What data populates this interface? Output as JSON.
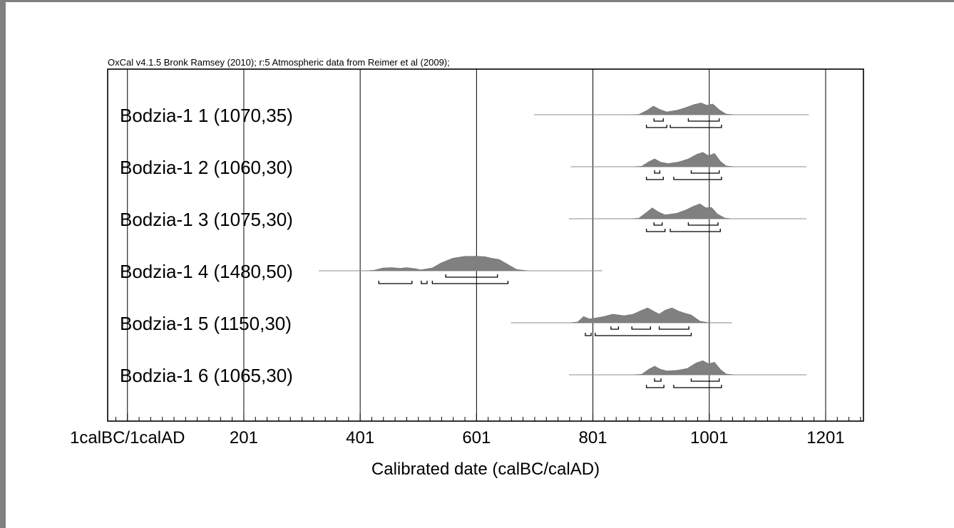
{
  "chart_data": {
    "type": "area",
    "title": "OxCal v4.1.5 Bronk Ramsey (2010); r:5 Atmospheric data from Reimer et al (2009);",
    "xlabel": "Calibrated date (calBC/calAD)",
    "xlim": [
      -33,
      1266
    ],
    "major_ticks": [
      1,
      201,
      401,
      601,
      801,
      1001,
      1201
    ],
    "tick_labels": [
      "1calBC/1calAD",
      "201",
      "401",
      "601",
      "801",
      "1001",
      "1201"
    ],
    "minor_tick_step": 20,
    "grid": true,
    "fill_color": "#808080",
    "series": [
      {
        "name": "Bodzia-1 1 (1070,35)",
        "range": [
          700,
          1172
        ],
        "curve": [
          [
            700,
            0
          ],
          [
            860,
            0
          ],
          [
            880,
            0.02
          ],
          [
            895,
            0.3
          ],
          [
            905,
            0.55
          ],
          [
            915,
            0.35
          ],
          [
            928,
            0.18
          ],
          [
            945,
            0.28
          ],
          [
            960,
            0.45
          ],
          [
            975,
            0.65
          ],
          [
            987,
            0.75
          ],
          [
            997,
            0.6
          ],
          [
            1007,
            0.68
          ],
          [
            1018,
            0.32
          ],
          [
            1030,
            0.04
          ],
          [
            1045,
            0
          ],
          [
            1172,
            0
          ]
        ],
        "bracket_rows": [
          [
            [
              906,
              922
            ],
            [
              965,
              1018
            ]
          ],
          [
            [
              893,
              928
            ],
            [
              934,
              1022
            ]
          ]
        ]
      },
      {
        "name": "Bodzia-1 2 (1060,30)",
        "range": [
          763,
          1168
        ],
        "curve": [
          [
            763,
            0
          ],
          [
            870,
            0
          ],
          [
            885,
            0.03
          ],
          [
            897,
            0.32
          ],
          [
            907,
            0.5
          ],
          [
            917,
            0.3
          ],
          [
            930,
            0.2
          ],
          [
            948,
            0.3
          ],
          [
            965,
            0.5
          ],
          [
            980,
            0.8
          ],
          [
            990,
            0.92
          ],
          [
            1000,
            0.7
          ],
          [
            1010,
            0.85
          ],
          [
            1020,
            0.35
          ],
          [
            1030,
            0.05
          ],
          [
            1045,
            0
          ],
          [
            1168,
            0
          ]
        ],
        "bracket_rows": [
          [
            [
              907,
              916
            ],
            [
              970,
              1018
            ]
          ],
          [
            [
              893,
              922
            ],
            [
              940,
              1022
            ]
          ]
        ]
      },
      {
        "name": "Bodzia-1 3 (1075,30)",
        "range": [
          760,
          1168
        ],
        "curve": [
          [
            760,
            0
          ],
          [
            865,
            0
          ],
          [
            880,
            0.03
          ],
          [
            893,
            0.4
          ],
          [
            903,
            0.7
          ],
          [
            913,
            0.45
          ],
          [
            925,
            0.25
          ],
          [
            945,
            0.35
          ],
          [
            960,
            0.55
          ],
          [
            975,
            0.82
          ],
          [
            985,
            0.95
          ],
          [
            995,
            0.7
          ],
          [
            1005,
            0.72
          ],
          [
            1015,
            0.3
          ],
          [
            1028,
            0.04
          ],
          [
            1040,
            0
          ],
          [
            1168,
            0
          ]
        ],
        "bracket_rows": [
          [
            [
              906,
              920
            ],
            [
              965,
              1016
            ]
          ],
          [
            [
              893,
              925
            ],
            [
              934,
              1020
            ]
          ]
        ]
      },
      {
        "name": "Bodzia-1 4 (1480,50)",
        "range": [
          330,
          817
        ],
        "curve": [
          [
            330,
            0
          ],
          [
            410,
            0
          ],
          [
            425,
            0.03
          ],
          [
            440,
            0.18
          ],
          [
            455,
            0.2
          ],
          [
            470,
            0.16
          ],
          [
            480,
            0.2
          ],
          [
            495,
            0.14
          ],
          [
            505,
            0.06
          ],
          [
            515,
            0.12
          ],
          [
            525,
            0.18
          ],
          [
            540,
            0.5
          ],
          [
            560,
            0.8
          ],
          [
            580,
            0.92
          ],
          [
            600,
            0.93
          ],
          [
            615,
            0.9
          ],
          [
            625,
            0.82
          ],
          [
            640,
            0.72
          ],
          [
            655,
            0.4
          ],
          [
            670,
            0.08
          ],
          [
            690,
            0
          ],
          [
            817,
            0
          ]
        ],
        "bracket_rows": [
          [
            [
              548,
              637
            ]
          ],
          [
            [
              433,
              490
            ],
            [
              506,
              516
            ],
            [
              525,
              655
            ]
          ]
        ]
      },
      {
        "name": "Bodzia-1 5 (1150,30)",
        "range": [
          660,
          1040
        ],
        "curve": [
          [
            660,
            0
          ],
          [
            760,
            0
          ],
          [
            775,
            0.05
          ],
          [
            785,
            0.4
          ],
          [
            795,
            0.25
          ],
          [
            805,
            0.3
          ],
          [
            820,
            0.4
          ],
          [
            835,
            0.55
          ],
          [
            855,
            0.45
          ],
          [
            870,
            0.55
          ],
          [
            885,
            0.8
          ],
          [
            895,
            0.95
          ],
          [
            905,
            0.75
          ],
          [
            915,
            0.55
          ],
          [
            925,
            0.8
          ],
          [
            937,
            0.95
          ],
          [
            948,
            0.75
          ],
          [
            960,
            0.6
          ],
          [
            970,
            0.5
          ],
          [
            985,
            0.1
          ],
          [
            1000,
            0.01
          ],
          [
            1040,
            0
          ]
        ],
        "bracket_rows": [
          [
            [
              832,
              845
            ],
            [
              868,
              900
            ],
            [
              915,
              966
            ]
          ],
          [
            [
              788,
              798
            ],
            [
              805,
              970
            ]
          ]
        ]
      },
      {
        "name": "Bodzia-1 6 (1065,30)",
        "range": [
          760,
          1168
        ],
        "curve": [
          [
            760,
            0
          ],
          [
            870,
            0
          ],
          [
            885,
            0.03
          ],
          [
            897,
            0.35
          ],
          [
            907,
            0.55
          ],
          [
            917,
            0.35
          ],
          [
            928,
            0.25
          ],
          [
            945,
            0.28
          ],
          [
            963,
            0.4
          ],
          [
            978,
            0.75
          ],
          [
            990,
            0.9
          ],
          [
            1000,
            0.7
          ],
          [
            1010,
            0.8
          ],
          [
            1020,
            0.35
          ],
          [
            1030,
            0.05
          ],
          [
            1045,
            0
          ],
          [
            1168,
            0
          ]
        ],
        "bracket_rows": [
          [
            [
              907,
              918
            ],
            [
              970,
              1018
            ]
          ],
          [
            [
              893,
              923
            ],
            [
              940,
              1022
            ]
          ]
        ]
      }
    ]
  }
}
